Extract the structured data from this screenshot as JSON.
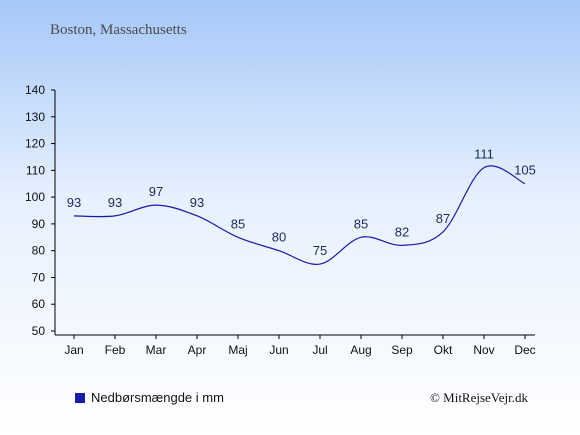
{
  "title": "Boston, Massachusetts",
  "legend_label": "Nedbørsmængde i mm",
  "credit": "© MitRejseVejr.dk",
  "colors": {
    "line": "#1a1aa8",
    "axis": "#000000",
    "label": "#1a2b5c"
  },
  "chart_data": {
    "type": "line",
    "title": "Boston, Massachusetts",
    "xlabel": "",
    "ylabel": "",
    "categories": [
      "Jan",
      "Feb",
      "Mar",
      "Apr",
      "Maj",
      "Jun",
      "Jul",
      "Aug",
      "Sep",
      "Okt",
      "Nov",
      "Dec"
    ],
    "series": [
      {
        "name": "Nedbørsmængde i mm",
        "values": [
          93,
          93,
          97,
          93,
          85,
          80,
          75,
          85,
          82,
          87,
          111,
          105
        ]
      }
    ],
    "ylim": [
      50,
      140
    ],
    "yticks": [
      50,
      60,
      70,
      80,
      90,
      100,
      110,
      120,
      130,
      140
    ],
    "grid": false,
    "legend": "bottom-left"
  }
}
